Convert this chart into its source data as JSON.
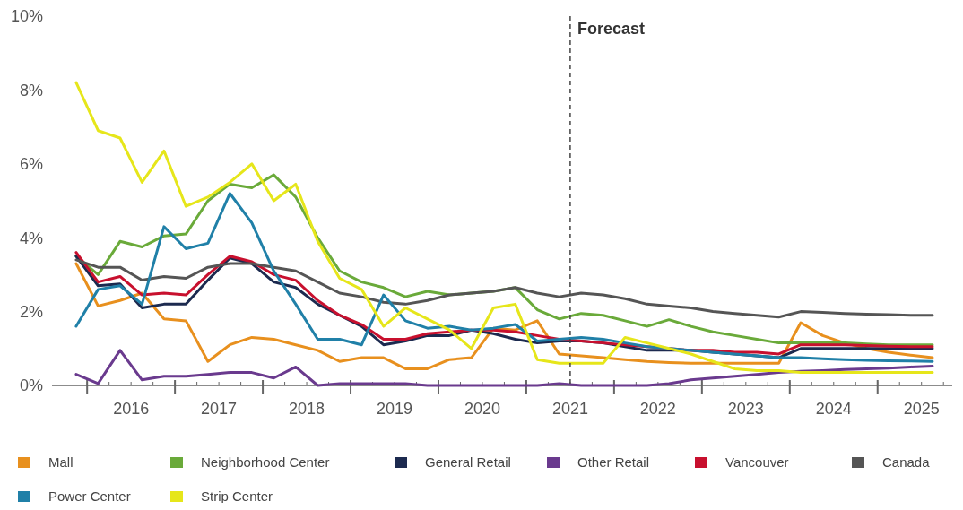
{
  "chart_data": {
    "type": "line",
    "x": [
      2015.375,
      2015.625,
      2015.875,
      2016.125,
      2016.375,
      2016.625,
      2016.875,
      2017.125,
      2017.375,
      2017.625,
      2017.875,
      2018.125,
      2018.375,
      2018.625,
      2018.875,
      2019.125,
      2019.375,
      2019.625,
      2019.875,
      2020.125,
      2020.375,
      2020.625,
      2020.875,
      2021.125,
      2021.375,
      2021.625,
      2021.875,
      2022.125,
      2022.375,
      2022.625,
      2022.875,
      2023.125,
      2023.375,
      2023.625,
      2023.875,
      2024.125,
      2024.375,
      2024.625,
      2024.875,
      2025.125
    ],
    "series": [
      {
        "name": "Mall",
        "color": "#e8901e",
        "values": [
          3.3,
          2.15,
          2.3,
          2.5,
          1.8,
          1.75,
          0.65,
          1.1,
          1.3,
          1.25,
          1.1,
          0.95,
          0.65,
          0.75,
          0.75,
          0.45,
          0.45,
          0.7,
          0.75,
          1.55,
          1.5,
          1.75,
          0.85,
          0.8,
          0.75,
          0.7,
          0.65,
          0.62,
          0.6,
          0.6,
          0.6,
          0.6,
          0.6,
          1.7,
          1.35,
          1.15,
          1.0,
          0.9,
          0.82,
          0.75
        ]
      },
      {
        "name": "Neighborhood Center",
        "color": "#6aaa3a",
        "values": [
          3.5,
          3.0,
          3.9,
          3.75,
          4.05,
          4.1,
          5.0,
          5.45,
          5.35,
          5.7,
          5.1,
          4.0,
          3.1,
          2.8,
          2.65,
          2.4,
          2.55,
          2.45,
          2.5,
          2.55,
          2.65,
          2.05,
          1.8,
          1.95,
          1.9,
          1.75,
          1.6,
          1.78,
          1.6,
          1.45,
          1.35,
          1.25,
          1.15,
          1.15,
          1.15,
          1.15,
          1.12,
          1.1,
          1.1,
          1.1
        ]
      },
      {
        "name": "General Retail",
        "color": "#1c2a4f",
        "values": [
          3.5,
          2.7,
          2.75,
          2.1,
          2.2,
          2.2,
          2.85,
          3.45,
          3.3,
          2.8,
          2.65,
          2.2,
          1.9,
          1.6,
          1.1,
          1.2,
          1.35,
          1.35,
          1.5,
          1.4,
          1.25,
          1.15,
          1.2,
          1.2,
          1.15,
          1.05,
          0.95,
          0.95,
          0.95,
          0.9,
          0.85,
          0.8,
          0.75,
          1.0,
          1.0,
          1.0,
          1.0,
          1.0,
          1.0,
          1.0
        ]
      },
      {
        "name": "Other Retail",
        "color": "#6a3a8e",
        "values": [
          0.3,
          0.05,
          0.95,
          0.15,
          0.25,
          0.25,
          0.3,
          0.35,
          0.35,
          0.2,
          0.5,
          0.0,
          0.05,
          0.05,
          0.05,
          0.05,
          0.0,
          0.0,
          0.0,
          0.0,
          0.0,
          0.0,
          0.05,
          0.0,
          0.0,
          0.0,
          0.0,
          0.05,
          0.15,
          0.2,
          0.25,
          0.3,
          0.35,
          0.38,
          0.4,
          0.43,
          0.45,
          0.47,
          0.5,
          0.52
        ]
      },
      {
        "name": "Vancouver",
        "color": "#c8102e",
        "values": [
          3.6,
          2.8,
          2.95,
          2.45,
          2.5,
          2.45,
          3.0,
          3.5,
          3.35,
          3.0,
          2.85,
          2.3,
          1.9,
          1.65,
          1.25,
          1.25,
          1.4,
          1.45,
          1.5,
          1.5,
          1.45,
          1.35,
          1.25,
          1.2,
          1.15,
          1.1,
          1.05,
          1.0,
          0.95,
          0.95,
          0.9,
          0.9,
          0.85,
          1.1,
          1.1,
          1.1,
          1.08,
          1.06,
          1.05,
          1.05
        ]
      },
      {
        "name": "Canada",
        "color": "#555555",
        "values": [
          3.4,
          3.2,
          3.2,
          2.85,
          2.95,
          2.9,
          3.2,
          3.3,
          3.3,
          3.2,
          3.1,
          2.8,
          2.5,
          2.4,
          2.25,
          2.2,
          2.3,
          2.45,
          2.5,
          2.55,
          2.65,
          2.5,
          2.4,
          2.5,
          2.45,
          2.35,
          2.2,
          2.15,
          2.1,
          2.0,
          1.95,
          1.9,
          1.85,
          2.0,
          1.98,
          1.95,
          1.93,
          1.92,
          1.9,
          1.9
        ]
      },
      {
        "name": "Power Center",
        "color": "#2080a8",
        "values": [
          1.6,
          2.6,
          2.7,
          2.2,
          4.3,
          3.7,
          3.85,
          5.2,
          4.4,
          3.1,
          2.2,
          1.25,
          1.25,
          1.1,
          2.45,
          1.75,
          1.55,
          1.6,
          1.5,
          1.55,
          1.65,
          1.2,
          1.25,
          1.3,
          1.25,
          1.15,
          1.05,
          1.0,
          0.95,
          0.9,
          0.85,
          0.8,
          0.75,
          0.75,
          0.72,
          0.7,
          0.68,
          0.67,
          0.66,
          0.65
        ]
      },
      {
        "name": "Strip Center",
        "color": "#e6e61a",
        "values": [
          8.2,
          6.9,
          6.7,
          5.5,
          6.35,
          4.85,
          5.1,
          5.5,
          6.0,
          5.0,
          5.45,
          3.9,
          2.9,
          2.6,
          1.6,
          2.1,
          1.8,
          1.5,
          1.0,
          2.1,
          2.2,
          0.7,
          0.6,
          0.6,
          0.6,
          1.3,
          1.15,
          1.0,
          0.85,
          0.65,
          0.45,
          0.4,
          0.4,
          0.35,
          0.35,
          0.35,
          0.35,
          0.35,
          0.35,
          0.35
        ]
      }
    ],
    "xlim": [
      2015.1,
      2025.35
    ],
    "xticks": [
      2016,
      2017,
      2018,
      2019,
      2020,
      2021,
      2022,
      2023,
      2024,
      2025
    ],
    "ylim": [
      0,
      10
    ],
    "yticks": [
      {
        "value": 0,
        "label": "0%"
      },
      {
        "value": 2,
        "label": "2%"
      },
      {
        "value": 4,
        "label": "4%"
      },
      {
        "value": 6,
        "label": "6%"
      },
      {
        "value": 8,
        "label": "8%"
      },
      {
        "value": 10,
        "label": "10%"
      }
    ],
    "ref_lines": [
      {
        "axis": "x",
        "value": 2021,
        "label": "Forecast",
        "color": "#444444",
        "line_style": "dashed"
      }
    ],
    "legend": "bottom",
    "line_style": "solid",
    "marker": "none",
    "grid": false
  }
}
